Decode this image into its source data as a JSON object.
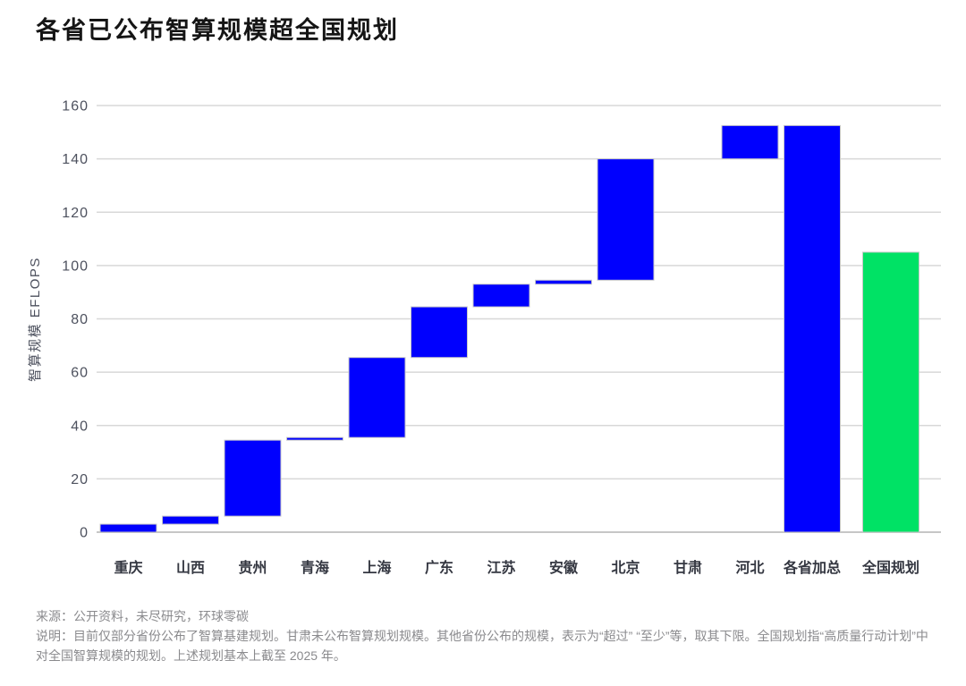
{
  "title": "各省已公布智算规模超全国规划",
  "chart_data": {
    "type": "bar",
    "subtype": "waterfall",
    "title": "各省已公布智算规模超全国规划",
    "xlabel": "",
    "ylabel": "智算规模 EFLOPS",
    "ylim": [
      0,
      160
    ],
    "yticks": [
      0,
      20,
      40,
      60,
      80,
      100,
      120,
      140,
      160
    ],
    "grid": true,
    "legend_position": "none",
    "colors": {
      "province_bar": "#0000fe",
      "national_bar": "#00e265",
      "gridline": "#d8d8d8",
      "axis_line": "#c6c6c6"
    },
    "categories": [
      "重庆",
      "山西",
      "贵州",
      "青海",
      "上海",
      "广东",
      "江苏",
      "安徽",
      "北京",
      "甘肃",
      "河北",
      "各省加总",
      "全国规划"
    ],
    "segments": [
      {
        "label": "重庆",
        "start": 0,
        "end": 3,
        "value": 3,
        "color": "province_bar",
        "role": "step"
      },
      {
        "label": "山西",
        "start": 3,
        "end": 6,
        "value": 3,
        "color": "province_bar",
        "role": "step"
      },
      {
        "label": "贵州",
        "start": 6,
        "end": 34.5,
        "value": 28.5,
        "color": "province_bar",
        "role": "step"
      },
      {
        "label": "青海",
        "start": 34.5,
        "end": 35.5,
        "value": 1,
        "color": "province_bar",
        "role": "step"
      },
      {
        "label": "上海",
        "start": 35.5,
        "end": 65.5,
        "value": 30,
        "color": "province_bar",
        "role": "step"
      },
      {
        "label": "广东",
        "start": 65.5,
        "end": 84.5,
        "value": 19,
        "color": "province_bar",
        "role": "step"
      },
      {
        "label": "江苏",
        "start": 84.5,
        "end": 93,
        "value": 8.5,
        "color": "province_bar",
        "role": "step"
      },
      {
        "label": "安徽",
        "start": 93,
        "end": 94.5,
        "value": 1.5,
        "color": "province_bar",
        "role": "step"
      },
      {
        "label": "北京",
        "start": 94.5,
        "end": 140,
        "value": 45.5,
        "color": "province_bar",
        "role": "step"
      },
      {
        "label": "甘肃",
        "start": 140,
        "end": 140,
        "value": 0,
        "color": "province_bar",
        "role": "step"
      },
      {
        "label": "河北",
        "start": 140,
        "end": 152.5,
        "value": 12.5,
        "color": "province_bar",
        "role": "step"
      },
      {
        "label": "各省加总",
        "start": 0,
        "end": 152.5,
        "value": 152.5,
        "color": "province_bar",
        "role": "total"
      },
      {
        "label": "全国规划",
        "start": 0,
        "end": 105,
        "value": 105,
        "color": "national_bar",
        "role": "reference"
      }
    ]
  },
  "footer": {
    "source": "来源：公开资料，未尽研究，环球零碳",
    "note": "说明：目前仅部分省份公布了智算基建规划。甘肃未公布智算规划规模。其他省份公布的规模，表示为“超过” “至少”等，取其下限。全国规划指“高质量行动计划”中对全国智算规模的规划。上述规划基本上截至 2025 年。"
  }
}
